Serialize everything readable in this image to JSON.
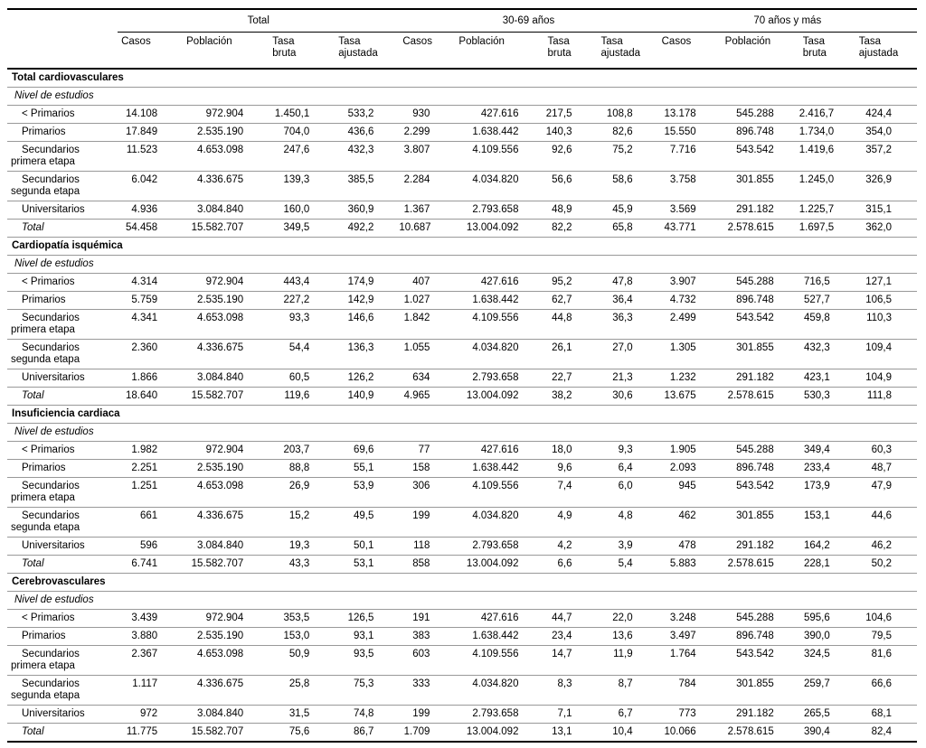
{
  "table": {
    "col_groups": [
      {
        "label": "Total"
      },
      {
        "label": "30-69 años"
      },
      {
        "label": "70 años y más"
      }
    ],
    "sub_headers": [
      "Casos",
      "Población",
      "Tasa\nbruta",
      "Tasa\najustada"
    ],
    "sections": [
      {
        "title": "Total cardiovasculares",
        "subtitle": "Nivel de estudios",
        "rows": [
          {
            "label": "< Primarios",
            "values": [
              "14.108",
              "972.904",
              "1.450,1",
              "533,2",
              "930",
              "427.616",
              "217,5",
              "108,8",
              "13.178",
              "545.288",
              "2.416,7",
              "424,4"
            ]
          },
          {
            "label": "Primarios",
            "values": [
              "17.849",
              "2.535.190",
              "704,0",
              "436,6",
              "2.299",
              "1.638.442",
              "140,3",
              "82,6",
              "15.550",
              "896.748",
              "1.734,0",
              "354,0"
            ]
          },
          {
            "label": "Secundarios",
            "label2": "primera etapa",
            "values": [
              "11.523",
              "4.653.098",
              "247,6",
              "432,3",
              "3.807",
              "4.109.556",
              "92,6",
              "75,2",
              "7.716",
              "543.542",
              "1.419,6",
              "357,2"
            ]
          },
          {
            "label": "Secundarios",
            "label2": "segunda etapa",
            "values": [
              "6.042",
              "4.336.675",
              "139,3",
              "385,5",
              "2.284",
              "4.034.820",
              "56,6",
              "58,6",
              "3.758",
              "301.855",
              "1.245,0",
              "326,9"
            ]
          },
          {
            "label": "Universitarios",
            "values": [
              "4.936",
              "3.084.840",
              "160,0",
              "360,9",
              "1.367",
              "2.793.658",
              "48,9",
              "45,9",
              "3.569",
              "291.182",
              "1.225,7",
              "315,1"
            ]
          },
          {
            "label": "Total",
            "italic": true,
            "values": [
              "54.458",
              "15.582.707",
              "349,5",
              "492,2",
              "10.687",
              "13.004.092",
              "82,2",
              "65,8",
              "43.771",
              "2.578.615",
              "1.697,5",
              "362,0"
            ]
          }
        ]
      },
      {
        "title": "Cardiopatía isquémica",
        "subtitle": "Nivel de estudios",
        "rows": [
          {
            "label": "< Primarios",
            "values": [
              "4.314",
              "972.904",
              "443,4",
              "174,9",
              "407",
              "427.616",
              "95,2",
              "47,8",
              "3.907",
              "545.288",
              "716,5",
              "127,1"
            ]
          },
          {
            "label": "Primarios",
            "values": [
              "5.759",
              "2.535.190",
              "227,2",
              "142,9",
              "1.027",
              "1.638.442",
              "62,7",
              "36,4",
              "4.732",
              "896.748",
              "527,7",
              "106,5"
            ]
          },
          {
            "label": "Secundarios",
            "label2": "primera etapa",
            "values": [
              "4.341",
              "4.653.098",
              "93,3",
              "146,6",
              "1.842",
              "4.109.556",
              "44,8",
              "36,3",
              "2.499",
              "543.542",
              "459,8",
              "110,3"
            ]
          },
          {
            "label": "Secundarios",
            "label2": "segunda etapa",
            "values": [
              "2.360",
              "4.336.675",
              "54,4",
              "136,3",
              "1.055",
              "4.034.820",
              "26,1",
              "27,0",
              "1.305",
              "301.855",
              "432,3",
              "109,4"
            ]
          },
          {
            "label": "Universitarios",
            "values": [
              "1.866",
              "3.084.840",
              "60,5",
              "126,2",
              "634",
              "2.793.658",
              "22,7",
              "21,3",
              "1.232",
              "291.182",
              "423,1",
              "104,9"
            ]
          },
          {
            "label": "Total",
            "italic": true,
            "values": [
              "18.640",
              "15.582.707",
              "119,6",
              "140,9",
              "4.965",
              "13.004.092",
              "38,2",
              "30,6",
              "13.675",
              "2.578.615",
              "530,3",
              "111,8"
            ]
          }
        ]
      },
      {
        "title": "Insuficiencia cardiaca",
        "subtitle": "Nivel de estudios",
        "rows": [
          {
            "label": "< Primarios",
            "values": [
              "1.982",
              "972.904",
              "203,7",
              "69,6",
              "77",
              "427.616",
              "18,0",
              "9,3",
              "1.905",
              "545.288",
              "349,4",
              "60,3"
            ]
          },
          {
            "label": "Primarios",
            "values": [
              "2.251",
              "2.535.190",
              "88,8",
              "55,1",
              "158",
              "1.638.442",
              "9,6",
              "6,4",
              "2.093",
              "896.748",
              "233,4",
              "48,7"
            ]
          },
          {
            "label": "Secundarios",
            "label2": "primera etapa",
            "values": [
              "1.251",
              "4.653.098",
              "26,9",
              "53,9",
              "306",
              "4.109.556",
              "7,4",
              "6,0",
              "945",
              "543.542",
              "173,9",
              "47,9"
            ]
          },
          {
            "label": "Secundarios",
            "label2": "segunda etapa",
            "values": [
              "661",
              "4.336.675",
              "15,2",
              "49,5",
              "199",
              "4.034.820",
              "4,9",
              "4,8",
              "462",
              "301.855",
              "153,1",
              "44,6"
            ]
          },
          {
            "label": "Universitarios",
            "values": [
              "596",
              "3.084.840",
              "19,3",
              "50,1",
              "118",
              "2.793.658",
              "4,2",
              "3,9",
              "478",
              "291.182",
              "164,2",
              "46,2"
            ]
          },
          {
            "label": "Total",
            "italic": true,
            "values": [
              "6.741",
              "15.582.707",
              "43,3",
              "53,1",
              "858",
              "13.004.092",
              "6,6",
              "5,4",
              "5.883",
              "2.578.615",
              "228,1",
              "50,2"
            ]
          }
        ]
      },
      {
        "title": "Cerebrovasculares",
        "subtitle": "Nivel de estudios",
        "rows": [
          {
            "label": "< Primarios",
            "values": [
              "3.439",
              "972.904",
              "353,5",
              "126,5",
              "191",
              "427.616",
              "44,7",
              "22,0",
              "3.248",
              "545.288",
              "595,6",
              "104,6"
            ]
          },
          {
            "label": "Primarios",
            "values": [
              "3.880",
              "2.535.190",
              "153,0",
              "93,1",
              "383",
              "1.638.442",
              "23,4",
              "13,6",
              "3.497",
              "896.748",
              "390,0",
              "79,5"
            ]
          },
          {
            "label": "Secundarios",
            "label2": "primera etapa",
            "values": [
              "2.367",
              "4.653.098",
              "50,9",
              "93,5",
              "603",
              "4.109.556",
              "14,7",
              "11,9",
              "1.764",
              "543.542",
              "324,5",
              "81,6"
            ]
          },
          {
            "label": "Secundarios",
            "label2": "segunda etapa",
            "values": [
              "1.117",
              "4.336.675",
              "25,8",
              "75,3",
              "333",
              "4.034.820",
              "8,3",
              "8,7",
              "784",
              "301.855",
              "259,7",
              "66,6"
            ]
          },
          {
            "label": "Universitarios",
            "values": [
              "972",
              "3.084.840",
              "31,5",
              "74,8",
              "199",
              "2.793.658",
              "7,1",
              "6,7",
              "773",
              "291.182",
              "265,5",
              "68,1"
            ]
          },
          {
            "label": "Total",
            "italic": true,
            "values": [
              "11.775",
              "15.582.707",
              "75,6",
              "86,7",
              "1.709",
              "13.004.092",
              "13,1",
              "10,4",
              "10.066",
              "2.578.615",
              "390,4",
              "82,4"
            ]
          }
        ]
      }
    ]
  }
}
